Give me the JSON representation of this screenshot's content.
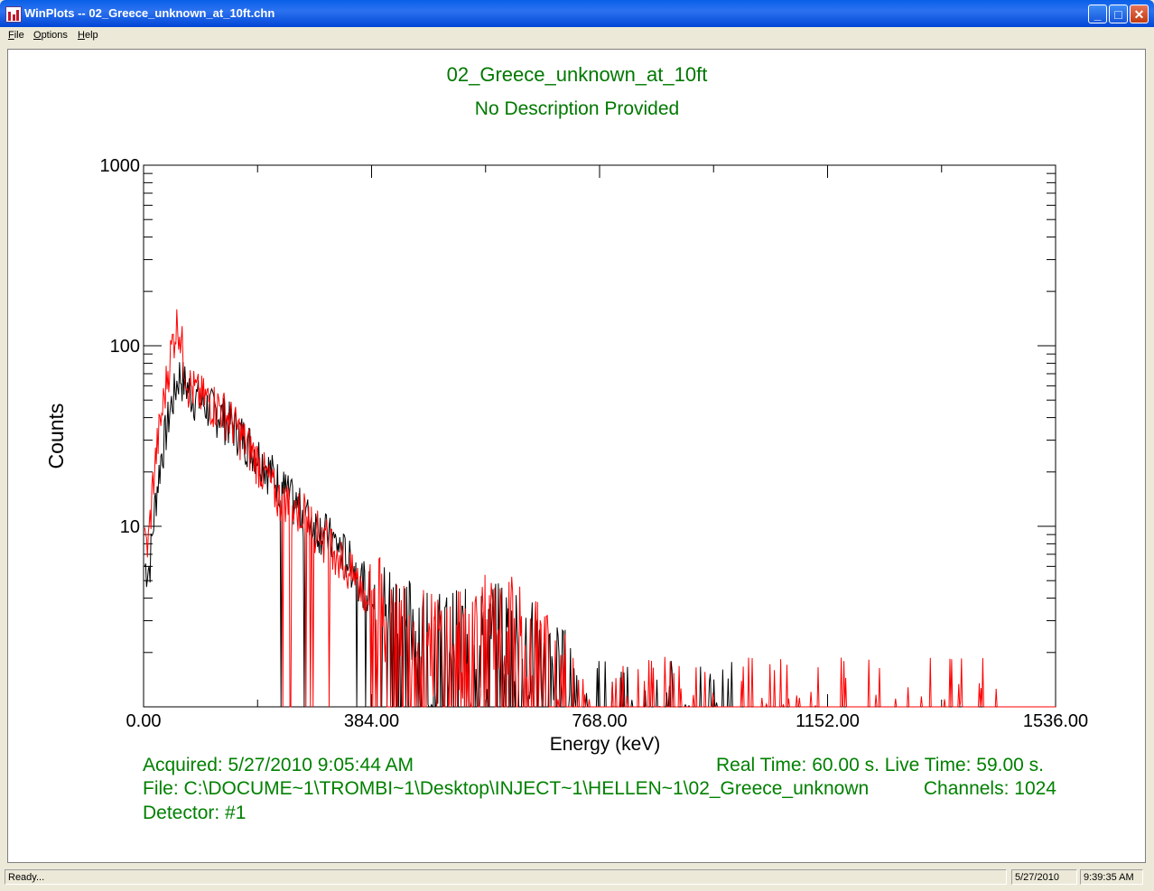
{
  "window": {
    "title": "WinPlots -- 02_Greece_unknown_at_10ft.chn"
  },
  "menu": [
    {
      "accel": "F",
      "rest": "ile"
    },
    {
      "accel": "O",
      "rest": "ptions"
    },
    {
      "accel": "H",
      "rest": "elp"
    }
  ],
  "plot": {
    "title": "02_Greece_unknown_at_10ft",
    "subtitle": "No Description Provided"
  },
  "info": {
    "acquired": "Acquired:  5/27/2010 9:05:44 AM",
    "times": "Real Time: 60.00 s.  Live Time: 59.00 s.",
    "file": "File:  C:\\DOCUME~1\\TROMBI~1\\Desktop\\INJECT~1\\HELLEN~1\\02_Greece_unknown",
    "channels": "Channels:  1024",
    "detector": "Detector:  #1"
  },
  "status": {
    "text": "Ready...",
    "date": "5/27/2010",
    "time": "9:39:35 AM"
  },
  "chart_data": {
    "type": "line",
    "xlabel": "Energy (keV)",
    "ylabel": "Counts",
    "xlim": [
      0,
      1536
    ],
    "ylim": [
      1,
      1000
    ],
    "yscale": "log",
    "x_ticks": [
      "0.00",
      "384.00",
      "768.00",
      "1152.00",
      "1536.00"
    ],
    "y_ticks": [
      "10",
      "100",
      "1000"
    ],
    "grid": false,
    "series": [
      {
        "color": "#ff0000",
        "x": [
          8,
          16,
          24,
          30,
          40,
          50,
          58,
          65,
          75,
          90,
          110,
          130,
          150,
          170,
          190,
          210,
          230,
          250,
          270,
          290,
          300,
          320,
          340,
          360,
          380,
          400,
          420,
          440,
          460,
          480,
          500,
          520,
          540,
          560,
          580,
          600,
          620,
          640,
          660,
          680,
          700,
          720,
          740,
          760,
          780,
          800,
          820,
          840,
          900,
          950,
          1000,
          1100,
          1200,
          1300,
          1400,
          1460
        ],
        "y": [
          8,
          18,
          30,
          40,
          70,
          110,
          140,
          100,
          62,
          55,
          50,
          46,
          38,
          30,
          24,
          18,
          14,
          13,
          12,
          10,
          9,
          8,
          6,
          5,
          4,
          3.5,
          3,
          2.8,
          2.5,
          2.3,
          2.2,
          2.2,
          2.5,
          2.4,
          3,
          2.5,
          2.8,
          2.3,
          2.2,
          1.8,
          1.5,
          1.2,
          1.1,
          1.1,
          1.1,
          1.1,
          1.1,
          1.1,
          1.1,
          1.1,
          1.1,
          1.1,
          1.1,
          1.05,
          1.05,
          1.05
        ]
      },
      {
        "color": "#000000",
        "x": [
          10,
          20,
          30,
          45,
          60,
          80,
          100,
          130,
          160,
          190,
          220,
          250,
          280,
          310,
          340,
          370,
          400,
          450,
          500,
          550,
          600,
          650,
          700,
          750,
          800,
          900,
          1000
        ],
        "y": [
          6,
          14,
          25,
          45,
          70,
          55,
          48,
          42,
          34,
          26,
          19,
          14,
          11,
          9,
          7,
          5,
          3.5,
          2.8,
          2.3,
          2.4,
          2.6,
          2.2,
          1.5,
          1.2,
          1.1,
          1.1,
          1.05
        ]
      }
    ]
  }
}
